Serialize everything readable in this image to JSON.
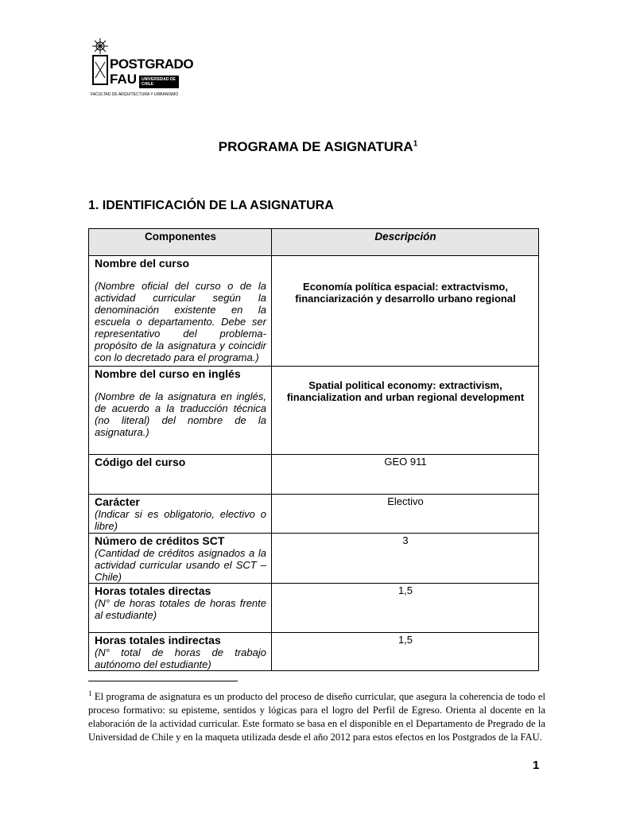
{
  "logo": {
    "name": "POSTGRADO",
    "sub": "FAU",
    "univ": "UNIVERSIDAD DE CHILE",
    "faculty": "FACULTAD DE ARQUITECTURA Y URBANISMO"
  },
  "title": "PROGRAMA DE ASIGNATURA",
  "title_note": "1",
  "section": "1. IDENTIFICACIÓN DE LA ASIGNATURA",
  "table": {
    "headers": [
      "Componentes",
      "Descripción"
    ],
    "rows": [
      {
        "label": "Nombre del curso",
        "hint": "(Nombre oficial del curso o de la actividad curricular según la denominación existente en la escuela o departamento. Debe ser representativo del problema-propósito de la asignatura y coincidir con lo decretado para el programa.)",
        "value": "Economía política espacial: extractvismo, financiarización y desarrollo urbano regional"
      },
      {
        "label": "Nombre del curso en inglés",
        "hint": "(Nombre de la asignatura en inglés, de acuerdo a la traducción técnica (no literal) del nombre de la asignatura.)",
        "value": "Spatial political economy: extractivism, financialization and urban regional development"
      },
      {
        "label": "Código del curso",
        "hint": "",
        "value": "GEO 911"
      },
      {
        "label": "Carácter",
        "hint": "(Indicar si es obligatorio, electivo o libre)",
        "value": "Electivo"
      },
      {
        "label": "Número de créditos SCT",
        "hint": "(Cantidad de créditos asignados a la actividad curricular usando el SCT – Chile)",
        "value": "3"
      },
      {
        "label": "Horas totales directas",
        "hint": "(N° de horas totales de horas frente al estudiante)",
        "value": "1,5"
      },
      {
        "label": "Horas totales indirectas",
        "hint": "(N° total de horas de trabajo autónomo del estudiante)",
        "value": "1,5"
      }
    ]
  },
  "footnote": {
    "mark": "1",
    "text": " El programa de asignatura es un producto del proceso de diseño curricular, que asegura la coherencia de todo el proceso formativo: su episteme, sentidos y lógicas para el logro del Perfil de Egreso. Orienta al docente en la elaboración de la actividad curricular. Este formato se basa en el disponible en el Departamento de Pregrado de la Universidad de Chile y en la maqueta utilizada desde el año 2012 para estos efectos en los Postgrados de la FAU."
  },
  "page_number": "1"
}
